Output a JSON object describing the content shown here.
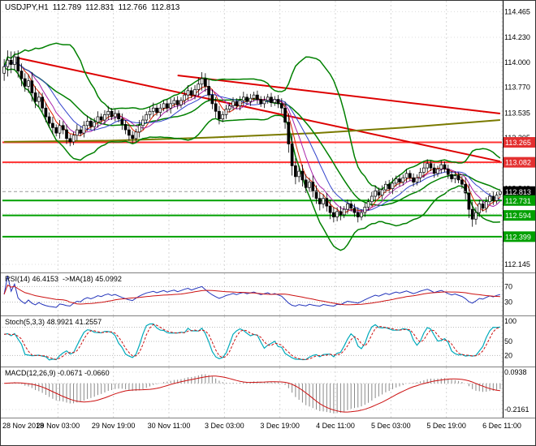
{
  "quote": {
    "symbol": "USDJPY,H1",
    "open": "112.789",
    "high": "112.831",
    "low": "112.766",
    "close": "112.813"
  },
  "chart_data": {
    "type": "candlestick",
    "title": "USDJPY,H1",
    "symbol": "USDJPY",
    "timeframe": "H1",
    "x_labels": [
      "28 Nov 2018",
      "29 Nov 03:00",
      "29 Nov 19:00",
      "30 Nov 11:00",
      "3 Dec 03:00",
      "3 Dec 19:00",
      "4 Dec 11:00",
      "5 Dec 03:00",
      "5 Dec 19:00",
      "6 Dec 11:00"
    ],
    "price_axis": {
      "min": 112.1,
      "max": 114.55,
      "ticks": [
        "114.465",
        "114.230",
        "114.000",
        "113.770",
        "113.535",
        "113.305",
        "113.070",
        "112.840",
        "112.610",
        "112.375",
        "112.145"
      ],
      "badges": [
        {
          "text": "113.265",
          "color": "#e33030"
        },
        {
          "text": "113.082",
          "color": "#e33030"
        },
        {
          "text": "112.813",
          "color": "#000000"
        },
        {
          "text": "112.731",
          "color": "#00a000"
        },
        {
          "text": "112.594",
          "color": "#00a000"
        },
        {
          "text": "112.399",
          "color": "#00a000"
        }
      ]
    },
    "candles_ohlc": [
      [
        113.9,
        114.03,
        113.83,
        113.96
      ],
      [
        113.96,
        114.11,
        113.87,
        114.02
      ],
      [
        114.02,
        114.1,
        113.9,
        113.98
      ],
      [
        113.98,
        114.1,
        113.93,
        114.05
      ],
      [
        114.05,
        114.11,
        113.86,
        113.92
      ],
      [
        113.92,
        113.99,
        113.78,
        113.85
      ],
      [
        113.85,
        113.9,
        113.73,
        113.78
      ],
      [
        113.78,
        113.89,
        113.72,
        113.83
      ],
      [
        113.83,
        113.91,
        113.64,
        113.72
      ],
      [
        113.72,
        113.78,
        113.58,
        113.64
      ],
      [
        113.64,
        113.73,
        113.59,
        113.68
      ],
      [
        113.68,
        113.72,
        113.54,
        113.58
      ],
      [
        113.58,
        113.63,
        113.45,
        113.5
      ],
      [
        113.5,
        113.54,
        113.4,
        113.44
      ],
      [
        113.44,
        113.5,
        113.34,
        113.4
      ],
      [
        113.4,
        113.43,
        113.32,
        113.35
      ],
      [
        113.35,
        113.47,
        113.3,
        113.42
      ],
      [
        113.42,
        113.46,
        113.34,
        113.38
      ],
      [
        113.38,
        113.43,
        113.25,
        113.3
      ],
      [
        113.3,
        113.34,
        113.23,
        113.27
      ],
      [
        113.27,
        113.36,
        113.24,
        113.33
      ],
      [
        113.33,
        113.43,
        113.28,
        113.38
      ],
      [
        113.38,
        113.41,
        113.32,
        113.35
      ],
      [
        113.35,
        113.46,
        113.31,
        113.42
      ],
      [
        113.42,
        113.51,
        113.37,
        113.46
      ],
      [
        113.46,
        113.49,
        113.38,
        113.41
      ],
      [
        113.41,
        113.49,
        113.37,
        113.45
      ],
      [
        113.45,
        113.55,
        113.4,
        113.5
      ],
      [
        113.5,
        113.53,
        113.44,
        113.47
      ],
      [
        113.47,
        113.56,
        113.43,
        113.52
      ],
      [
        113.52,
        113.6,
        113.47,
        113.55
      ],
      [
        113.55,
        113.58,
        113.47,
        113.5
      ],
      [
        113.5,
        113.57,
        113.46,
        113.53
      ],
      [
        113.53,
        113.56,
        113.45,
        113.48
      ],
      [
        113.48,
        113.53,
        113.38,
        113.43
      ],
      [
        113.43,
        113.47,
        113.34,
        113.38
      ],
      [
        113.38,
        113.43,
        113.28,
        113.33
      ],
      [
        113.33,
        113.37,
        113.26,
        113.3
      ],
      [
        113.3,
        113.39,
        113.27,
        113.36
      ],
      [
        113.36,
        113.47,
        113.31,
        113.42
      ],
      [
        113.42,
        113.51,
        113.38,
        113.47
      ],
      [
        113.47,
        113.55,
        113.44,
        113.52
      ],
      [
        113.52,
        113.59,
        113.48,
        113.55
      ],
      [
        113.55,
        113.63,
        113.5,
        113.58
      ],
      [
        113.58,
        113.61,
        113.51,
        113.54
      ],
      [
        113.54,
        113.62,
        113.5,
        113.58
      ],
      [
        113.58,
        113.65,
        113.55,
        113.62
      ],
      [
        113.62,
        113.66,
        113.54,
        113.58
      ],
      [
        113.58,
        113.67,
        113.53,
        113.62
      ],
      [
        113.62,
        113.68,
        113.59,
        113.65
      ],
      [
        113.65,
        113.69,
        113.57,
        113.61
      ],
      [
        113.61,
        113.68,
        113.58,
        113.65
      ],
      [
        113.65,
        113.74,
        113.61,
        113.7
      ],
      [
        113.7,
        113.79,
        113.65,
        113.74
      ],
      [
        113.74,
        113.77,
        113.67,
        113.7
      ],
      [
        113.7,
        113.79,
        113.66,
        113.75
      ],
      [
        113.75,
        113.86,
        113.69,
        113.8
      ],
      [
        113.8,
        113.91,
        113.74,
        113.85
      ],
      [
        113.85,
        113.9,
        113.73,
        113.78
      ],
      [
        113.78,
        113.84,
        113.64,
        113.7
      ],
      [
        113.7,
        113.75,
        113.57,
        113.62
      ],
      [
        113.62,
        113.68,
        113.49,
        113.55
      ],
      [
        113.55,
        113.6,
        113.43,
        113.48
      ],
      [
        113.48,
        113.55,
        113.45,
        113.52
      ],
      [
        113.52,
        113.61,
        113.48,
        113.57
      ],
      [
        113.57,
        113.63,
        113.54,
        113.6
      ],
      [
        113.6,
        113.68,
        113.56,
        113.64
      ],
      [
        113.64,
        113.67,
        113.57,
        113.6
      ],
      [
        113.6,
        113.69,
        113.56,
        113.65
      ],
      [
        113.65,
        113.73,
        113.6,
        113.68
      ],
      [
        113.68,
        113.71,
        113.61,
        113.64
      ],
      [
        113.64,
        113.71,
        113.6,
        113.67
      ],
      [
        113.67,
        113.73,
        113.64,
        113.7
      ],
      [
        113.7,
        113.74,
        113.62,
        113.66
      ],
      [
        113.66,
        113.69,
        113.59,
        113.62
      ],
      [
        113.62,
        113.69,
        113.58,
        113.65
      ],
      [
        113.65,
        113.71,
        113.62,
        113.68
      ],
      [
        113.68,
        113.72,
        113.59,
        113.63
      ],
      [
        113.63,
        113.69,
        113.6,
        113.66
      ],
      [
        113.66,
        113.7,
        113.58,
        113.62
      ],
      [
        113.62,
        113.67,
        113.53,
        113.58
      ],
      [
        113.58,
        113.64,
        113.39,
        113.45
      ],
      [
        113.45,
        113.53,
        113.17,
        113.25
      ],
      [
        113.25,
        113.34,
        112.96,
        113.05
      ],
      [
        113.05,
        113.12,
        112.88,
        112.95
      ],
      [
        112.95,
        113.05,
        112.9,
        113.0
      ],
      [
        113.0,
        113.06,
        112.86,
        112.92
      ],
      [
        112.92,
        112.97,
        112.8,
        112.85
      ],
      [
        112.85,
        112.94,
        112.81,
        112.9
      ],
      [
        112.9,
        112.96,
        112.76,
        112.82
      ],
      [
        112.82,
        112.87,
        112.7,
        112.75
      ],
      [
        112.75,
        112.81,
        112.64,
        112.7
      ],
      [
        112.7,
        112.79,
        112.66,
        112.75
      ],
      [
        112.75,
        112.8,
        112.63,
        112.68
      ],
      [
        112.68,
        112.74,
        112.56,
        112.62
      ],
      [
        112.62,
        112.67,
        112.53,
        112.58
      ],
      [
        112.58,
        112.67,
        112.54,
        112.63
      ],
      [
        112.63,
        112.68,
        112.55,
        112.6
      ],
      [
        112.6,
        112.68,
        112.57,
        112.65
      ],
      [
        112.65,
        112.74,
        112.61,
        112.7
      ],
      [
        112.7,
        112.73,
        112.63,
        112.66
      ],
      [
        112.66,
        112.7,
        112.58,
        112.62
      ],
      [
        112.62,
        112.67,
        112.53,
        112.58
      ],
      [
        112.58,
        112.65,
        112.55,
        112.62
      ],
      [
        112.62,
        112.71,
        112.58,
        112.67
      ],
      [
        112.67,
        112.75,
        112.64,
        112.72
      ],
      [
        112.72,
        112.81,
        112.68,
        112.77
      ],
      [
        112.77,
        112.87,
        112.72,
        112.82
      ],
      [
        112.82,
        112.85,
        112.75,
        112.78
      ],
      [
        112.78,
        112.87,
        112.74,
        112.83
      ],
      [
        112.83,
        112.91,
        112.8,
        112.88
      ],
      [
        112.88,
        112.92,
        112.8,
        112.84
      ],
      [
        112.84,
        112.94,
        112.79,
        112.89
      ],
      [
        112.89,
        112.96,
        112.86,
        112.93
      ],
      [
        112.93,
        112.97,
        112.86,
        112.9
      ],
      [
        112.9,
        112.97,
        112.87,
        112.94
      ],
      [
        112.94,
        113.02,
        112.9,
        112.98
      ],
      [
        112.98,
        113.01,
        112.91,
        112.94
      ],
      [
        112.94,
        112.98,
        112.86,
        112.9
      ],
      [
        112.9,
        112.97,
        112.87,
        112.94
      ],
      [
        112.94,
        113.03,
        112.9,
        112.99
      ],
      [
        112.99,
        113.08,
        112.94,
        113.03
      ],
      [
        113.03,
        113.11,
        112.99,
        113.07
      ],
      [
        113.07,
        113.1,
        113.0,
        113.03
      ],
      [
        113.03,
        113.07,
        112.94,
        112.98
      ],
      [
        112.98,
        113.05,
        112.95,
        113.02
      ],
      [
        113.02,
        113.1,
        112.98,
        113.06
      ],
      [
        113.06,
        113.09,
        112.99,
        113.02
      ],
      [
        113.02,
        113.06,
        112.93,
        112.97
      ],
      [
        112.97,
        113.0,
        112.9,
        112.93
      ],
      [
        112.93,
        113.0,
        112.89,
        112.96
      ],
      [
        112.96,
        112.99,
        112.89,
        112.92
      ],
      [
        112.92,
        112.96,
        112.84,
        112.88
      ],
      [
        112.88,
        112.94,
        112.74,
        112.8
      ],
      [
        112.8,
        112.88,
        112.57,
        112.65
      ],
      [
        112.65,
        112.72,
        112.49,
        112.56
      ],
      [
        112.56,
        112.67,
        112.51,
        112.62
      ],
      [
        112.62,
        112.74,
        112.58,
        112.7
      ],
      [
        112.7,
        112.73,
        112.63,
        112.66
      ],
      [
        112.66,
        112.76,
        112.62,
        112.72
      ],
      [
        112.72,
        112.8,
        112.69,
        112.77
      ],
      [
        112.77,
        112.81,
        112.69,
        112.73
      ],
      [
        112.73,
        112.81,
        112.7,
        112.78
      ],
      [
        112.789,
        112.831,
        112.766,
        112.813
      ]
    ],
    "overlays": {
      "bollinger": {
        "period": 20,
        "deviation": 2,
        "color": "#008000"
      },
      "moving_averages": [
        {
          "period": 5,
          "color": "#dd2200"
        },
        {
          "period": 8,
          "color": "#aa22aa"
        },
        {
          "period": 13,
          "color": "#3344cc"
        }
      ],
      "slow_ma_polyline": {
        "color": "#7a7a00",
        "points": [
          [
            0,
            113.27
          ],
          [
            30,
            113.28
          ],
          [
            60,
            113.31
          ],
          [
            90,
            113.35
          ],
          [
            115,
            113.4
          ],
          [
            143,
            113.47
          ]
        ]
      },
      "trendlines": [
        {
          "from_bar": 4,
          "from_price": 114.04,
          "to_bar": 143,
          "to_price": 113.09,
          "color": "#dd0000",
          "width": 2
        },
        {
          "from_bar": 50,
          "from_price": 113.88,
          "to_bar": 143,
          "to_price": 113.53,
          "color": "#dd0000",
          "width": 2
        }
      ],
      "horizontal_lines": [
        {
          "price": 113.265,
          "color": "#ff3030",
          "width": 2
        },
        {
          "price": 113.082,
          "color": "#ff3030",
          "width": 2
        },
        {
          "price": 112.731,
          "color": "#00a000",
          "width": 2
        },
        {
          "price": 112.594,
          "color": "#00a000",
          "width": 2
        },
        {
          "price": 112.399,
          "color": "#00a000",
          "width": 2
        }
      ]
    },
    "last_price": {
      "text": "112.813",
      "numeric": 112.813
    },
    "indicator_panes": {
      "rsi": {
        "label": "RSI(14) 46.4153  ->MA(18) 45.0992",
        "period": 14,
        "ma_period": 18,
        "axis_labels": [
          "70",
          "30"
        ],
        "levels": [
          70,
          30
        ],
        "line_color": "#2233bb",
        "ma_color": "#cc1111"
      },
      "stochastic": {
        "label": "Stoch(5,3,3) 48.9921 41.2557",
        "k": 5,
        "d": 3,
        "slowing": 3,
        "axis_labels": [
          "100",
          "50",
          "20"
        ],
        "levels": [
          80,
          50,
          20
        ],
        "k_color": "#00aabb",
        "d_color": "#cc1111"
      },
      "macd": {
        "label": "MACD(12,26,9) -0.0671 -0.0660",
        "fast": 12,
        "slow": 26,
        "signal": 9,
        "axis_labels": [
          "0.0938",
          "-0.2161"
        ],
        "range": [
          0.12,
          -0.27
        ],
        "histogram_color": "#8a8a8a",
        "signal_color": "#cc1111"
      }
    }
  }
}
